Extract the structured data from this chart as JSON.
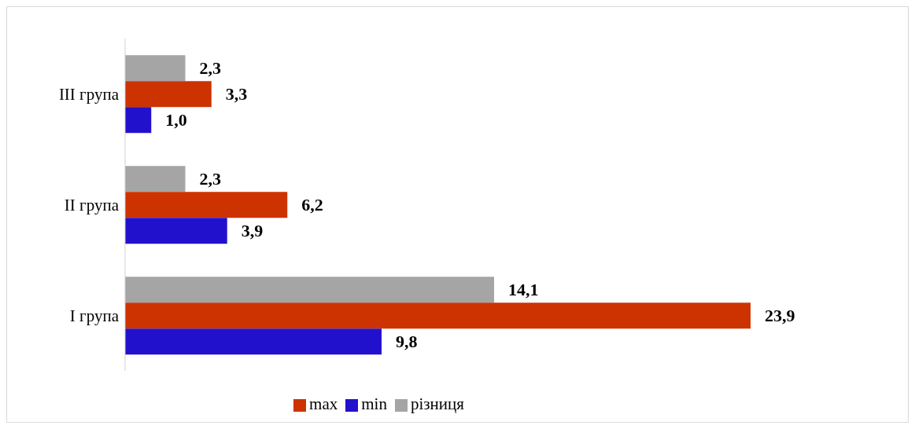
{
  "chart_data": {
    "type": "bar",
    "orientation": "horizontal",
    "categories": [
      "III група",
      "II група",
      "I група"
    ],
    "series": [
      {
        "name": "різниця",
        "color": "#a5a5a5",
        "values": [
          2.3,
          2.3,
          14.1
        ],
        "value_labels": [
          "2,3",
          "2,3",
          "14,1"
        ]
      },
      {
        "name": "max",
        "color": "#cc3300",
        "values": [
          3.3,
          6.2,
          23.9
        ],
        "value_labels": [
          "3,3",
          "6,2",
          "23,9"
        ]
      },
      {
        "name": "min",
        "color": "#2211cc",
        "values": [
          1.0,
          3.9,
          9.8
        ],
        "value_labels": [
          "1,0",
          "3,9",
          "9,8"
        ]
      }
    ],
    "legend": "bottom",
    "grid": false
  }
}
